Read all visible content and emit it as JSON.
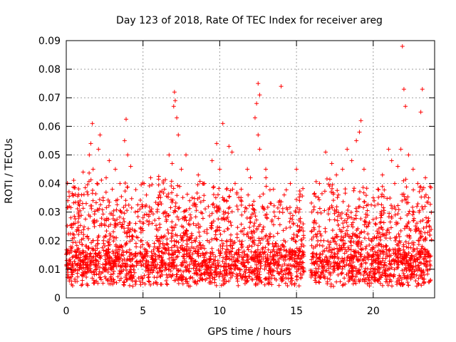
{
  "chart_data": {
    "type": "scatter",
    "title": "Day 123 of 2018, Rate Of TEC Index for receiver areg",
    "xlabel": "GPS time / hours",
    "ylabel": "ROTI / TECUs",
    "xlim": [
      0,
      24
    ],
    "ylim": [
      0,
      0.09
    ],
    "x_ticks": [
      0,
      5,
      10,
      15,
      20,
      25
    ],
    "x_tick_labels": [
      "0",
      "5",
      "10",
      "15",
      "20"
    ],
    "y_ticks": [
      0,
      0.01,
      0.02,
      0.03,
      0.04,
      0.05,
      0.06,
      0.07,
      0.08,
      0.09
    ],
    "y_tick_labels": [
      "0",
      "0.01",
      "0.02",
      "0.03",
      "0.04",
      "0.05",
      "0.06",
      "0.07",
      "0.08",
      "0.09"
    ],
    "grid": true,
    "marker": "+",
    "marker_color": "#ff0000",
    "series": [
      {
        "name": "ROTI",
        "points": [
          [
            0.1,
            0.034
          ],
          [
            0.3,
            0.028
          ],
          [
            0.5,
            0.022
          ],
          [
            0.8,
            0.03
          ],
          [
            1.0,
            0.036
          ],
          [
            1.1,
            0.044
          ],
          [
            1.3,
            0.033
          ],
          [
            1.5,
            0.05
          ],
          [
            1.6,
            0.054
          ],
          [
            1.7,
            0.061
          ],
          [
            1.75,
            0.045
          ],
          [
            2.0,
            0.04
          ],
          [
            2.1,
            0.052
          ],
          [
            2.2,
            0.057
          ],
          [
            2.4,
            0.035
          ],
          [
            2.6,
            0.042
          ],
          [
            2.8,
            0.048
          ],
          [
            3.0,
            0.038
          ],
          [
            3.2,
            0.045
          ],
          [
            3.5,
            0.04
          ],
          [
            3.8,
            0.055
          ],
          [
            3.9,
            0.0625
          ],
          [
            4.0,
            0.05
          ],
          [
            4.2,
            0.046
          ],
          [
            4.5,
            0.03
          ],
          [
            5.0,
            0.028
          ],
          [
            5.5,
            0.042
          ],
          [
            6.0,
            0.035
          ],
          [
            6.4,
            0.038
          ],
          [
            6.7,
            0.05
          ],
          [
            6.9,
            0.047
          ],
          [
            7.0,
            0.067
          ],
          [
            7.05,
            0.072
          ],
          [
            7.1,
            0.069
          ],
          [
            7.2,
            0.063
          ],
          [
            7.3,
            0.057
          ],
          [
            7.5,
            0.045
          ],
          [
            7.8,
            0.05
          ],
          [
            8.2,
            0.035
          ],
          [
            8.6,
            0.043
          ],
          [
            9.0,
            0.04
          ],
          [
            9.5,
            0.048
          ],
          [
            9.8,
            0.054
          ],
          [
            10.0,
            0.045
          ],
          [
            10.2,
            0.061
          ],
          [
            10.6,
            0.053
          ],
          [
            10.8,
            0.051
          ],
          [
            11.0,
            0.04
          ],
          [
            11.4,
            0.038
          ],
          [
            11.8,
            0.045
          ],
          [
            12.0,
            0.042
          ],
          [
            12.3,
            0.063
          ],
          [
            12.4,
            0.068
          ],
          [
            12.5,
            0.075
          ],
          [
            12.6,
            0.071
          ],
          [
            12.5,
            0.057
          ],
          [
            12.6,
            0.052
          ],
          [
            13.0,
            0.045
          ],
          [
            13.5,
            0.038
          ],
          [
            14.0,
            0.074
          ],
          [
            14.2,
            0.036
          ],
          [
            14.6,
            0.04
          ],
          [
            15.0,
            0.045
          ],
          [
            15.2,
            0.034
          ],
          [
            16.0,
            0.03
          ],
          [
            16.5,
            0.04
          ],
          [
            16.9,
            0.051
          ],
          [
            17.3,
            0.047
          ],
          [
            17.6,
            0.043
          ],
          [
            18.0,
            0.045
          ],
          [
            18.3,
            0.052
          ],
          [
            18.6,
            0.048
          ],
          [
            18.9,
            0.055
          ],
          [
            19.1,
            0.058
          ],
          [
            19.2,
            0.062
          ],
          [
            19.4,
            0.045
          ],
          [
            20.0,
            0.035
          ],
          [
            20.3,
            0.038
          ],
          [
            20.6,
            0.043
          ],
          [
            21.0,
            0.052
          ],
          [
            21.2,
            0.048
          ],
          [
            21.4,
            0.04
          ],
          [
            21.6,
            0.046
          ],
          [
            21.8,
            0.052
          ],
          [
            21.9,
            0.088
          ],
          [
            22.0,
            0.073
          ],
          [
            22.1,
            0.067
          ],
          [
            22.3,
            0.05
          ],
          [
            22.6,
            0.045
          ],
          [
            22.9,
            0.04
          ],
          [
            23.1,
            0.065
          ],
          [
            23.2,
            0.073
          ],
          [
            23.4,
            0.042
          ],
          [
            23.6,
            0.035
          ]
        ]
      }
    ]
  }
}
